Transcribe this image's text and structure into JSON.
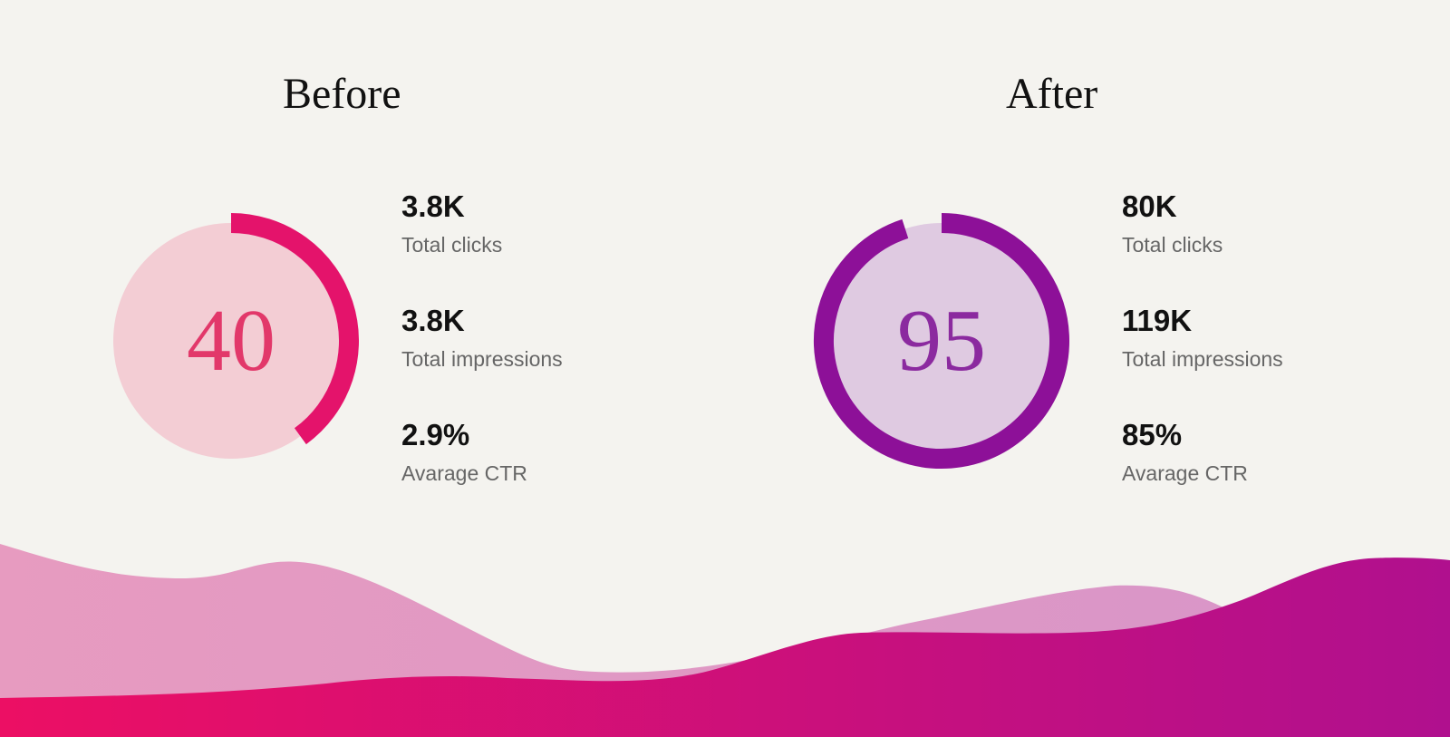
{
  "before": {
    "title": "Before",
    "score": 40,
    "score_label": "40",
    "colors": {
      "circle_fill": "#f3cdd4",
      "ring": "#e4136b",
      "score_text": "#e2386a"
    },
    "stats": [
      {
        "value": "3.8K",
        "label": "Total clicks"
      },
      {
        "value": "3.8K",
        "label": "Total impressions"
      },
      {
        "value": "2.9%",
        "label": "Avarage CTR"
      }
    ]
  },
  "after": {
    "title": "After",
    "score": 95,
    "score_label": "95",
    "colors": {
      "circle_fill": "#dfcae1",
      "ring": "#8d1098",
      "score_text": "#8b2a9f"
    },
    "stats": [
      {
        "value": "80K",
        "label": "Total clicks"
      },
      {
        "value": "119K",
        "label": "Total impressions"
      },
      {
        "value": "85%",
        "label": "Avarage CTR"
      }
    ]
  },
  "decoration": {
    "wave_colors": [
      "#e79bc0",
      "#d795c9",
      "#ec0f64",
      "#b0108e"
    ]
  }
}
